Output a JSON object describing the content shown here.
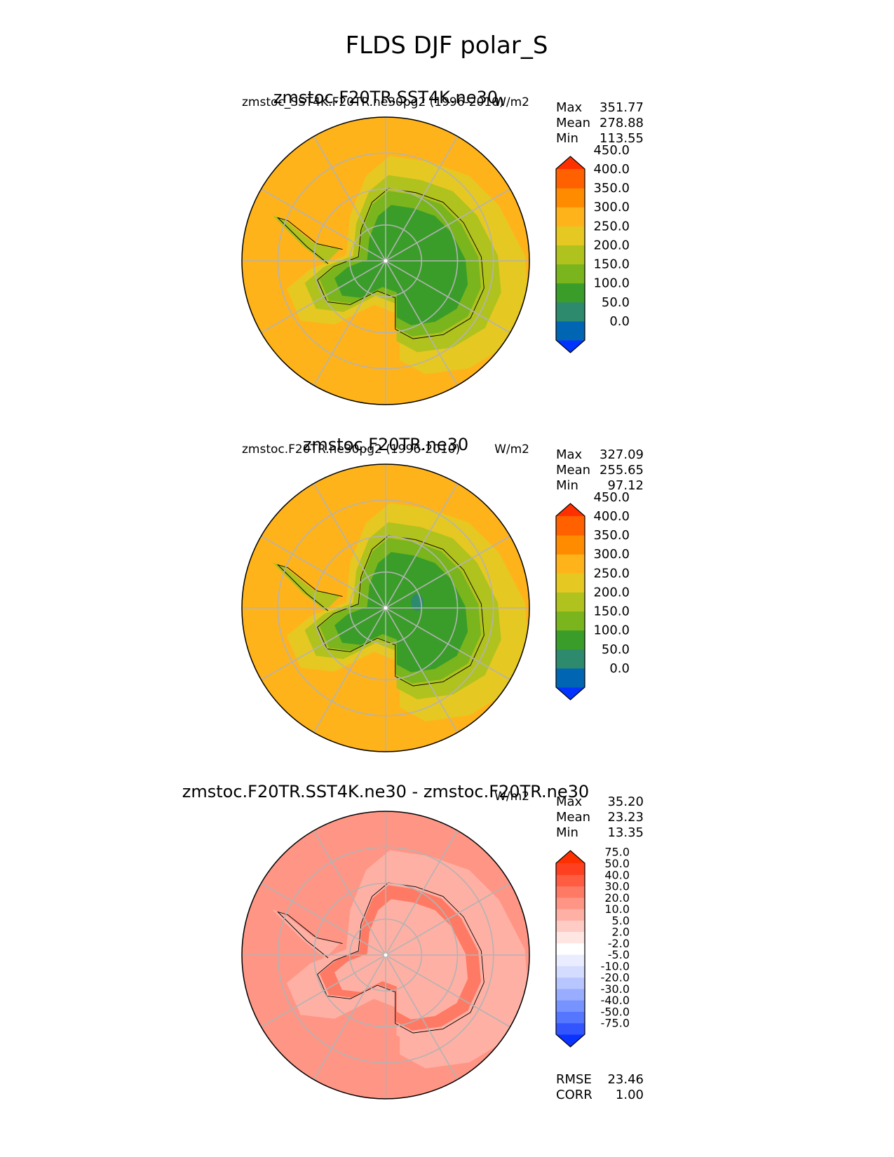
{
  "figure_title": "FLDS DJF polar_S",
  "chart_data": [
    {
      "type": "polar-contour-map",
      "title": "zmstoc.F20TR.SST4K.ne30",
      "left_label": "zmstoc_SST4K.F20TR.ne30pg2 (1996-2010)",
      "right_label": "W/m2",
      "stats": [
        {
          "label": "Max",
          "value": "351.77"
        },
        {
          "label": "Mean",
          "value": "278.88"
        },
        {
          "label": "Min",
          "value": "113.55"
        }
      ],
      "colorbar": {
        "levels": [
          "0.0",
          "50.0",
          "100.0",
          "150.0",
          "200.0",
          "250.0",
          "300.0",
          "350.0",
          "400.0",
          "450.0"
        ],
        "colors": [
          "#0033ff",
          "#0066b3",
          "#2e8a6c",
          "#3a9d2a",
          "#7ab51d",
          "#b0c21e",
          "#e6c822",
          "#ffb31a",
          "#ff8c00",
          "#ff6000",
          "#ff3000"
        ],
        "extend": "both"
      },
      "field": {
        "ocean": "#ffb31a",
        "sea_ice": "#e6c822",
        "coast": "#b0c21e",
        "slope": "#7ab51d",
        "plateau": "#3a9d2a",
        "low": null
      }
    },
    {
      "type": "polar-contour-map",
      "title": "zmstoc.F20TR.ne30",
      "left_label": "zmstoc.F20TR.ne30pg2 (1996-2010)",
      "right_label": "W/m2",
      "stats": [
        {
          "label": "Max",
          "value": "327.09"
        },
        {
          "label": "Mean",
          "value": "255.65"
        },
        {
          "label": "Min",
          "value": "97.12"
        }
      ],
      "colorbar": {
        "levels": [
          "0.0",
          "50.0",
          "100.0",
          "150.0",
          "200.0",
          "250.0",
          "300.0",
          "350.0",
          "400.0",
          "450.0"
        ],
        "colors": [
          "#0033ff",
          "#0066b3",
          "#2e8a6c",
          "#3a9d2a",
          "#7ab51d",
          "#b0c21e",
          "#e6c822",
          "#ffb31a",
          "#ff8c00",
          "#ff6000",
          "#ff3000"
        ],
        "extend": "both"
      },
      "field": {
        "ocean": "#ffb31a",
        "sea_ice": "#e6c822",
        "coast": "#b0c21e",
        "slope": "#7ab51d",
        "plateau": "#3a9d2a",
        "low": "#2e8a6c"
      }
    },
    {
      "type": "polar-contour-map",
      "title": "zmstoc.F20TR.SST4K.ne30 - zmstoc.F20TR.ne30",
      "left_label": "",
      "right_label": "W/m2",
      "stats": [
        {
          "label": "Max",
          "value": "35.20"
        },
        {
          "label": "Mean",
          "value": "23.23"
        },
        {
          "label": "Min",
          "value": "13.35"
        }
      ],
      "colorbar": {
        "levels": [
          "-75.0",
          "-50.0",
          "-40.0",
          "-30.0",
          "-20.0",
          "-10.0",
          "-5.0",
          "-2.0",
          "2.0",
          "5.0",
          "10.0",
          "20.0",
          "30.0",
          "40.0",
          "50.0",
          "75.0"
        ],
        "colors": [
          "#0a33ff",
          "#3355ff",
          "#5577ff",
          "#7793ff",
          "#98adff",
          "#b8c6ff",
          "#d4dcff",
          "#e9edff",
          "#ffffff",
          "#ffe6e3",
          "#ffccc5",
          "#ffb0a4",
          "#ff9585",
          "#ff7a64",
          "#ff5c42",
          "#ff4020",
          "#ff3000"
        ],
        "extend": "both"
      },
      "field": {
        "ocean": "#ff9585",
        "sea_ice": "#ffb0a4",
        "coast": "#ffb0a4",
        "slope": "#ff7a64",
        "plateau": "#ffb0a4",
        "low": null
      },
      "metrics": [
        {
          "label": "RMSE",
          "value": "23.46"
        },
        {
          "label": "CORR",
          "value": "1.00"
        }
      ]
    }
  ]
}
